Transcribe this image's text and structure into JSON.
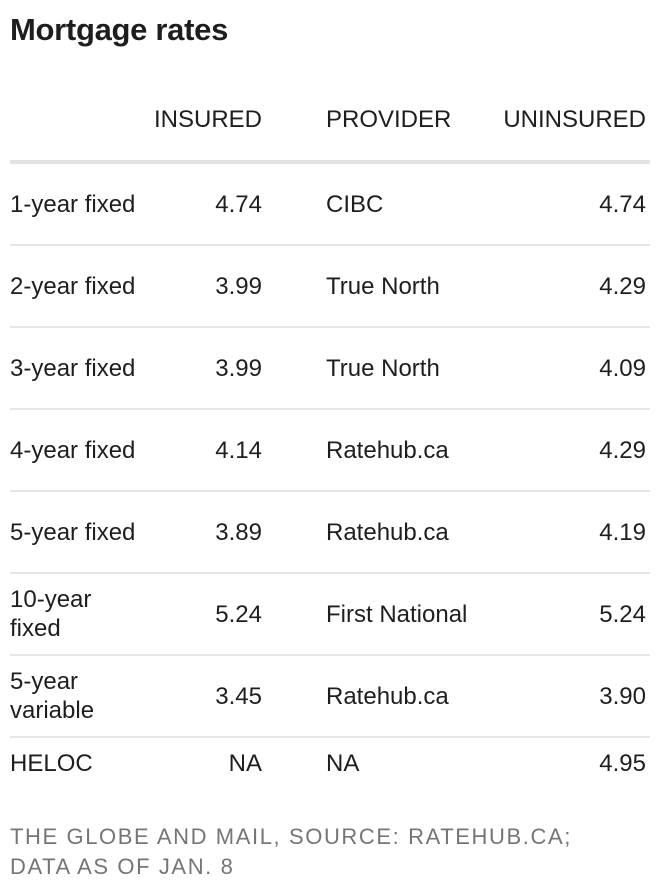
{
  "title": "Mortgage rates",
  "chart_data": {
    "type": "table",
    "title": "Mortgage rates",
    "columns": [
      "",
      "INSURED",
      "PROVIDER",
      "UNINSURED"
    ],
    "rows": [
      {
        "term": "1-year fixed",
        "insured": "4.74",
        "provider": "CIBC",
        "uninsured": "4.74"
      },
      {
        "term": "2-year fixed",
        "insured": "3.99",
        "provider": "True North",
        "uninsured": "4.29"
      },
      {
        "term": "3-year fixed",
        "insured": "3.99",
        "provider": "True North",
        "uninsured": "4.09"
      },
      {
        "term": "4-year fixed",
        "insured": "4.14",
        "provider": "Ratehub.ca",
        "uninsured": "4.29"
      },
      {
        "term": "5-year fixed",
        "insured": "3.89",
        "provider": "Ratehub.ca",
        "uninsured": "4.19"
      },
      {
        "term": "10-year fixed",
        "insured": "5.24",
        "provider": "First National",
        "uninsured": "5.24"
      },
      {
        "term": "5-year variable",
        "insured": "3.45",
        "provider": "Ratehub.ca",
        "uninsured": "3.90"
      },
      {
        "term": "HELOC",
        "insured": "NA",
        "provider": "NA",
        "uninsured": "4.95"
      }
    ]
  },
  "footer": "THE GLOBE AND MAIL, SOURCE: RATEHUB.CA; DATA AS OF JAN. 8"
}
